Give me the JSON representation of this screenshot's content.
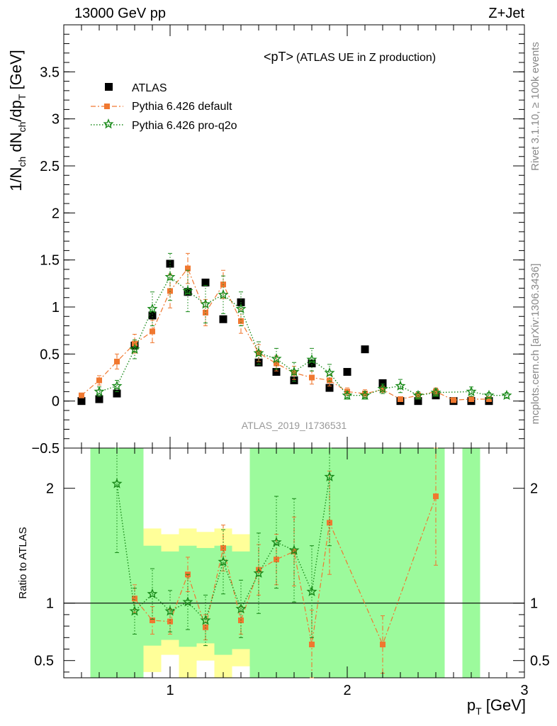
{
  "header": {
    "left": "13000 GeV pp",
    "right": "Z+Jet"
  },
  "side_text": {
    "rivet": "Rivet 3.1.10, ≥ 100k events",
    "mcplots": "mcplots.cern.ch [arXiv:1306.3436]"
  },
  "analysis_id": "ATLAS_2019_I1736531",
  "colors": {
    "data": "#000000",
    "default": "#f07830",
    "proq2o": "#1a8a1a",
    "band_green": "#9cfa9c",
    "band_yellow": "#ffff99"
  },
  "chart_data": [
    {
      "type": "scatter",
      "panel": "main",
      "title": "<pT>",
      "title_suffix": "(ATLAS UE in Z production)",
      "ylabel": "1/N_ch dN_ch/dp_T [GeV]",
      "ylim": [
        -0.5,
        4.0
      ],
      "yticks": [
        -0.5,
        0,
        0.5,
        1,
        1.5,
        2,
        2.5,
        3,
        3.5
      ],
      "ytick_labels": [
        "−0.5",
        "0",
        "0.5",
        "1",
        "1.5",
        "2",
        "2.5",
        "3",
        "3.5"
      ],
      "xlim": [
        0.4,
        3.0
      ],
      "legend": [
        "ATLAS",
        "Pythia 6.426 default",
        "Pythia 6.426 pro-q2o"
      ],
      "legend_placement": "top-left",
      "series": [
        {
          "name": "ATLAS",
          "marker": "square",
          "x": [
            0.5,
            0.6,
            0.7,
            0.8,
            0.9,
            1.0,
            1.1,
            1.2,
            1.3,
            1.4,
            1.5,
            1.6,
            1.7,
            1.8,
            1.9,
            2.0,
            2.1,
            2.2,
            2.3,
            2.4,
            2.5,
            2.6,
            2.7,
            2.8
          ],
          "y": [
            0.0,
            0.02,
            0.08,
            0.59,
            0.91,
            1.46,
            1.16,
            1.26,
            0.87,
            1.05,
            0.41,
            0.31,
            0.22,
            0.4,
            0.14,
            0.31,
            0.55,
            0.19,
            0.0,
            0.0,
            0.06,
            0.0,
            0.0,
            0.0
          ]
        },
        {
          "name": "Pythia 6.426 default",
          "marker": "square-small",
          "x": [
            0.5,
            0.6,
            0.7,
            0.8,
            0.9,
            1.0,
            1.1,
            1.2,
            1.3,
            1.4,
            1.5,
            1.6,
            1.7,
            1.8,
            1.9,
            2.0,
            2.1,
            2.2,
            2.3,
            2.4,
            2.5,
            2.6,
            2.7,
            2.8
          ],
          "y": [
            0.06,
            0.22,
            0.42,
            0.61,
            0.74,
            1.17,
            1.41,
            0.94,
            1.24,
            0.85,
            0.51,
            0.4,
            0.3,
            0.25,
            0.22,
            0.1,
            0.08,
            0.12,
            0.02,
            0.06,
            0.1,
            0.01,
            0.02,
            0.02
          ],
          "yerr": [
            0.02,
            0.05,
            0.08,
            0.1,
            0.12,
            0.18,
            0.16,
            0.14,
            0.15,
            0.13,
            0.09,
            0.08,
            0.07,
            0.07,
            0.06,
            0.04,
            0.04,
            0.04,
            0.02,
            0.03,
            0.04,
            0.01,
            0.02,
            0.02
          ]
        },
        {
          "name": "Pythia 6.426 pro-q2o",
          "marker": "star",
          "x": [
            0.6,
            0.7,
            0.8,
            0.9,
            1.0,
            1.1,
            1.2,
            1.3,
            1.4,
            1.5,
            1.6,
            1.7,
            1.8,
            1.9,
            2.0,
            2.1,
            2.2,
            2.3,
            2.4,
            2.5,
            2.7,
            2.8,
            2.9
          ],
          "y": [
            0.1,
            0.16,
            0.55,
            0.98,
            1.32,
            1.17,
            1.03,
            1.13,
            0.98,
            0.51,
            0.45,
            0.31,
            0.44,
            0.3,
            0.06,
            0.06,
            0.13,
            0.16,
            0.06,
            0.09,
            0.1,
            0.06,
            0.06
          ],
          "yerr": [
            0.05,
            0.06,
            0.1,
            0.18,
            0.25,
            0.22,
            0.2,
            0.2,
            0.18,
            0.12,
            0.11,
            0.1,
            0.12,
            0.09,
            0.04,
            0.04,
            0.05,
            0.07,
            0.04,
            0.04,
            0.05,
            0.03,
            0.03
          ]
        }
      ]
    },
    {
      "type": "scatter",
      "panel": "ratio",
      "ylabel": "Ratio to ATLAS",
      "xlabel": "p_T [GeV]",
      "ylim": [
        0.35,
        2.35
      ],
      "yticks": [
        0.5,
        1,
        2
      ],
      "ytick_labels": [
        "0.5",
        "1",
        "2"
      ],
      "xlim": [
        0.4,
        3.0
      ],
      "xticks": [
        1,
        2,
        3
      ],
      "xtick_labels": [
        "1",
        "2",
        "3"
      ],
      "reference_line": 1,
      "bands": [
        {
          "x0": 0.55,
          "x1": 0.75,
          "green": [
            0.35,
            2.35
          ],
          "yellow": [
            0.35,
            2.35
          ]
        },
        {
          "x0": 0.75,
          "x1": 0.85,
          "green": [
            0.35,
            2.35
          ],
          "yellow": [
            0.35,
            1.75
          ]
        },
        {
          "x0": 0.85,
          "x1": 0.95,
          "green": [
            0.63,
            1.5
          ],
          "yellow": [
            0.4,
            1.65
          ]
        },
        {
          "x0": 0.95,
          "x1": 1.05,
          "green": [
            0.68,
            1.45
          ],
          "yellow": [
            0.55,
            1.6
          ]
        },
        {
          "x0": 1.05,
          "x1": 1.15,
          "green": [
            0.62,
            1.5
          ],
          "yellow": [
            0.35,
            1.65
          ]
        },
        {
          "x0": 1.15,
          "x1": 1.25,
          "green": [
            0.65,
            1.48
          ],
          "yellow": [
            0.5,
            1.62
          ]
        },
        {
          "x0": 1.25,
          "x1": 1.35,
          "green": [
            0.55,
            1.5
          ],
          "yellow": [
            0.35,
            1.65
          ]
        },
        {
          "x0": 1.35,
          "x1": 1.45,
          "green": [
            0.6,
            1.45
          ],
          "yellow": [
            0.45,
            1.6
          ]
        },
        {
          "x0": 1.45,
          "x1": 1.55,
          "green": [
            0.35,
            2.35
          ],
          "yellow": [
            0.35,
            2.35
          ]
        },
        {
          "x0": 1.55,
          "x1": 1.65,
          "green": [
            0.35,
            2.35
          ],
          "yellow": [
            0.35,
            2.35
          ]
        },
        {
          "x0": 1.65,
          "x1": 1.75,
          "green": [
            0.35,
            2.35
          ],
          "yellow": [
            0.35,
            2.35
          ]
        },
        {
          "x0": 1.75,
          "x1": 1.85,
          "green": [
            0.35,
            2.35
          ],
          "yellow": [
            0.35,
            2.35
          ]
        },
        {
          "x0": 1.85,
          "x1": 1.95,
          "green": [
            0.35,
            2.35
          ],
          "yellow": [
            0.35,
            2.35
          ]
        },
        {
          "x0": 1.95,
          "x1": 2.05,
          "green": [
            0.35,
            2.35
          ],
          "yellow": [
            0.35,
            2.35
          ]
        },
        {
          "x0": 2.05,
          "x1": 2.15,
          "green": [
            0.35,
            2.35
          ],
          "yellow": [
            0.35,
            2.35
          ]
        },
        {
          "x0": 2.15,
          "x1": 2.25,
          "green": [
            0.35,
            2.35
          ],
          "yellow": [
            0.35,
            2.35
          ]
        },
        {
          "x0": 2.25,
          "x1": 2.35,
          "green": [
            0.35,
            2.35
          ],
          "yellow": [
            0.35,
            2.35
          ]
        },
        {
          "x0": 2.35,
          "x1": 2.45,
          "green": [
            0.35,
            2.35
          ],
          "yellow": [
            0.35,
            2.35
          ]
        },
        {
          "x0": 2.45,
          "x1": 2.55,
          "green": [
            0.35,
            2.35
          ],
          "yellow": [
            0.35,
            2.35
          ]
        },
        {
          "x0": 2.65,
          "x1": 2.75,
          "green": [
            0.35,
            2.35
          ],
          "yellow": [
            0.35,
            2.35
          ]
        }
      ],
      "series": [
        {
          "name": "Pythia 6.426 default",
          "marker": "square-small",
          "x": [
            0.8,
            0.9,
            1.0,
            1.1,
            1.2,
            1.3,
            1.4,
            1.5,
            1.6,
            1.7,
            1.8,
            1.9,
            2.2,
            2.5
          ],
          "y": [
            1.04,
            0.85,
            0.84,
            1.25,
            0.79,
            1.48,
            0.85,
            1.29,
            1.38,
            1.45,
            0.64,
            1.7,
            0.64,
            1.93
          ],
          "yerr": [
            0.12,
            0.12,
            0.11,
            0.15,
            0.11,
            0.2,
            0.12,
            0.22,
            0.22,
            0.3,
            0.3,
            0.45,
            0.25,
            0.6
          ]
        },
        {
          "name": "Pythia 6.426 pro-q2o",
          "marker": "star",
          "x": [
            0.7,
            0.8,
            0.9,
            1.0,
            1.1,
            1.2,
            1.3,
            1.4,
            1.5,
            1.6,
            1.7,
            1.8,
            1.9
          ],
          "y": [
            2.04,
            0.93,
            1.08,
            0.93,
            1.01,
            0.85,
            1.36,
            0.95,
            1.26,
            1.53,
            1.46,
            1.1,
            2.1
          ],
          "yerr": [
            0.6,
            0.2,
            0.22,
            0.18,
            0.24,
            0.22,
            0.28,
            0.25,
            0.35,
            0.4,
            0.45,
            0.4,
            0.6
          ]
        }
      ]
    }
  ]
}
